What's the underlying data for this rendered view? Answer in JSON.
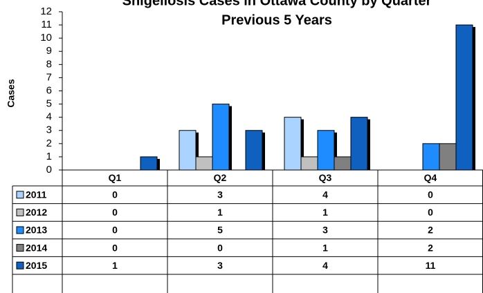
{
  "chart_data": {
    "type": "bar",
    "title": "Shigellosis Cases in Ottawa County by Quarter",
    "subtitle": "Previous 5 Years",
    "y_label": "Cases",
    "categories": [
      "Q1",
      "Q2",
      "Q3",
      "Q4"
    ],
    "series": [
      {
        "name": "2011",
        "color": "#aad4ff",
        "values": [
          0,
          3,
          4,
          0
        ]
      },
      {
        "name": "2012",
        "color": "#c0c0c0",
        "values": [
          0,
          1,
          1,
          0
        ]
      },
      {
        "name": "2013",
        "color": "#1e8cff",
        "values": [
          0,
          5,
          3,
          2
        ]
      },
      {
        "name": "2014",
        "color": "#808080",
        "values": [
          0,
          0,
          1,
          2
        ]
      },
      {
        "name": "2015",
        "color": "#1060c0",
        "values": [
          1,
          3,
          4,
          11
        ]
      }
    ],
    "ylim": [
      0,
      12
    ],
    "yticks": [
      0,
      1,
      2,
      3,
      4,
      5,
      6,
      7,
      8,
      9,
      10,
      11,
      12
    ],
    "grid": false,
    "data_table": true
  }
}
